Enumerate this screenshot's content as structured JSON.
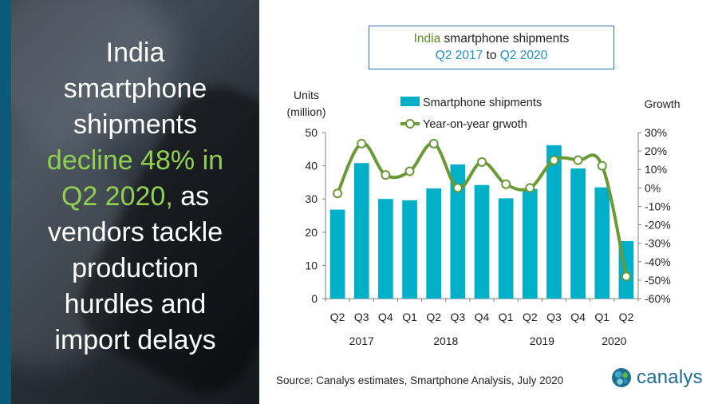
{
  "headline": {
    "line1": "India",
    "line2": "smartphone",
    "line3": "shipments",
    "accent_line1": "decline 48% in",
    "accent_line2": "Q2 2020,",
    "line4_rest": " as",
    "line5": "vendors tackle",
    "line6": "production",
    "line7": "hurdles and",
    "line8": "import delays"
  },
  "title": {
    "country": "India",
    "rest": " smartphone shipments",
    "from": "Q2 2017",
    "to_word": " to ",
    "to": "Q2 2020"
  },
  "source": "Source: Canalys estimates, Smartphone Analysis, July 2020",
  "logo": {
    "text": "canalys",
    "icon": "canalys-globe-icon"
  },
  "colors": {
    "bar": "#00b0c8",
    "line": "#6a9a35",
    "accent_green": "#92d050",
    "blue_border": "#2e75b6",
    "left_strip": "#0b5a78"
  },
  "chart_data": {
    "type": "bar",
    "categories": [
      "Q2",
      "Q3",
      "Q4",
      "Q1",
      "Q2",
      "Q3",
      "Q4",
      "Q1",
      "Q2",
      "Q3",
      "Q4",
      "Q1",
      "Q2"
    ],
    "year_labels": [
      {
        "label": "2017",
        "index": 1
      },
      {
        "label": "2018",
        "index": 4.5
      },
      {
        "label": "2019",
        "index": 8.5
      },
      {
        "label": "2020",
        "index": 11.5
      }
    ],
    "series": [
      {
        "name": "Smartphone shipments",
        "type": "bar",
        "axis": "left",
        "values": [
          26.8,
          40.8,
          30.0,
          29.6,
          33.2,
          40.4,
          34.2,
          30.2,
          33.0,
          46.2,
          39.2,
          33.5,
          17.3
        ]
      },
      {
        "name": "Year-on-year grwoth",
        "type": "line",
        "axis": "right",
        "values": [
          -3,
          24,
          7,
          9,
          24,
          0,
          14,
          2,
          0,
          15,
          15,
          12,
          -48
        ]
      }
    ],
    "ylabel_left": [
      "Units",
      "(million)"
    ],
    "ylabel_right": "Growth",
    "ylim_left": [
      0,
      50
    ],
    "yticks_left": [
      0,
      10,
      20,
      30,
      40,
      50
    ],
    "ylim_right": [
      -60,
      30
    ],
    "yticks_right": [
      "30%",
      "20%",
      "10%",
      "0%",
      "-10%",
      "-20%",
      "-30%",
      "-40%",
      "-50%",
      "-60%"
    ],
    "grid": false,
    "legend_position": "top-center"
  }
}
